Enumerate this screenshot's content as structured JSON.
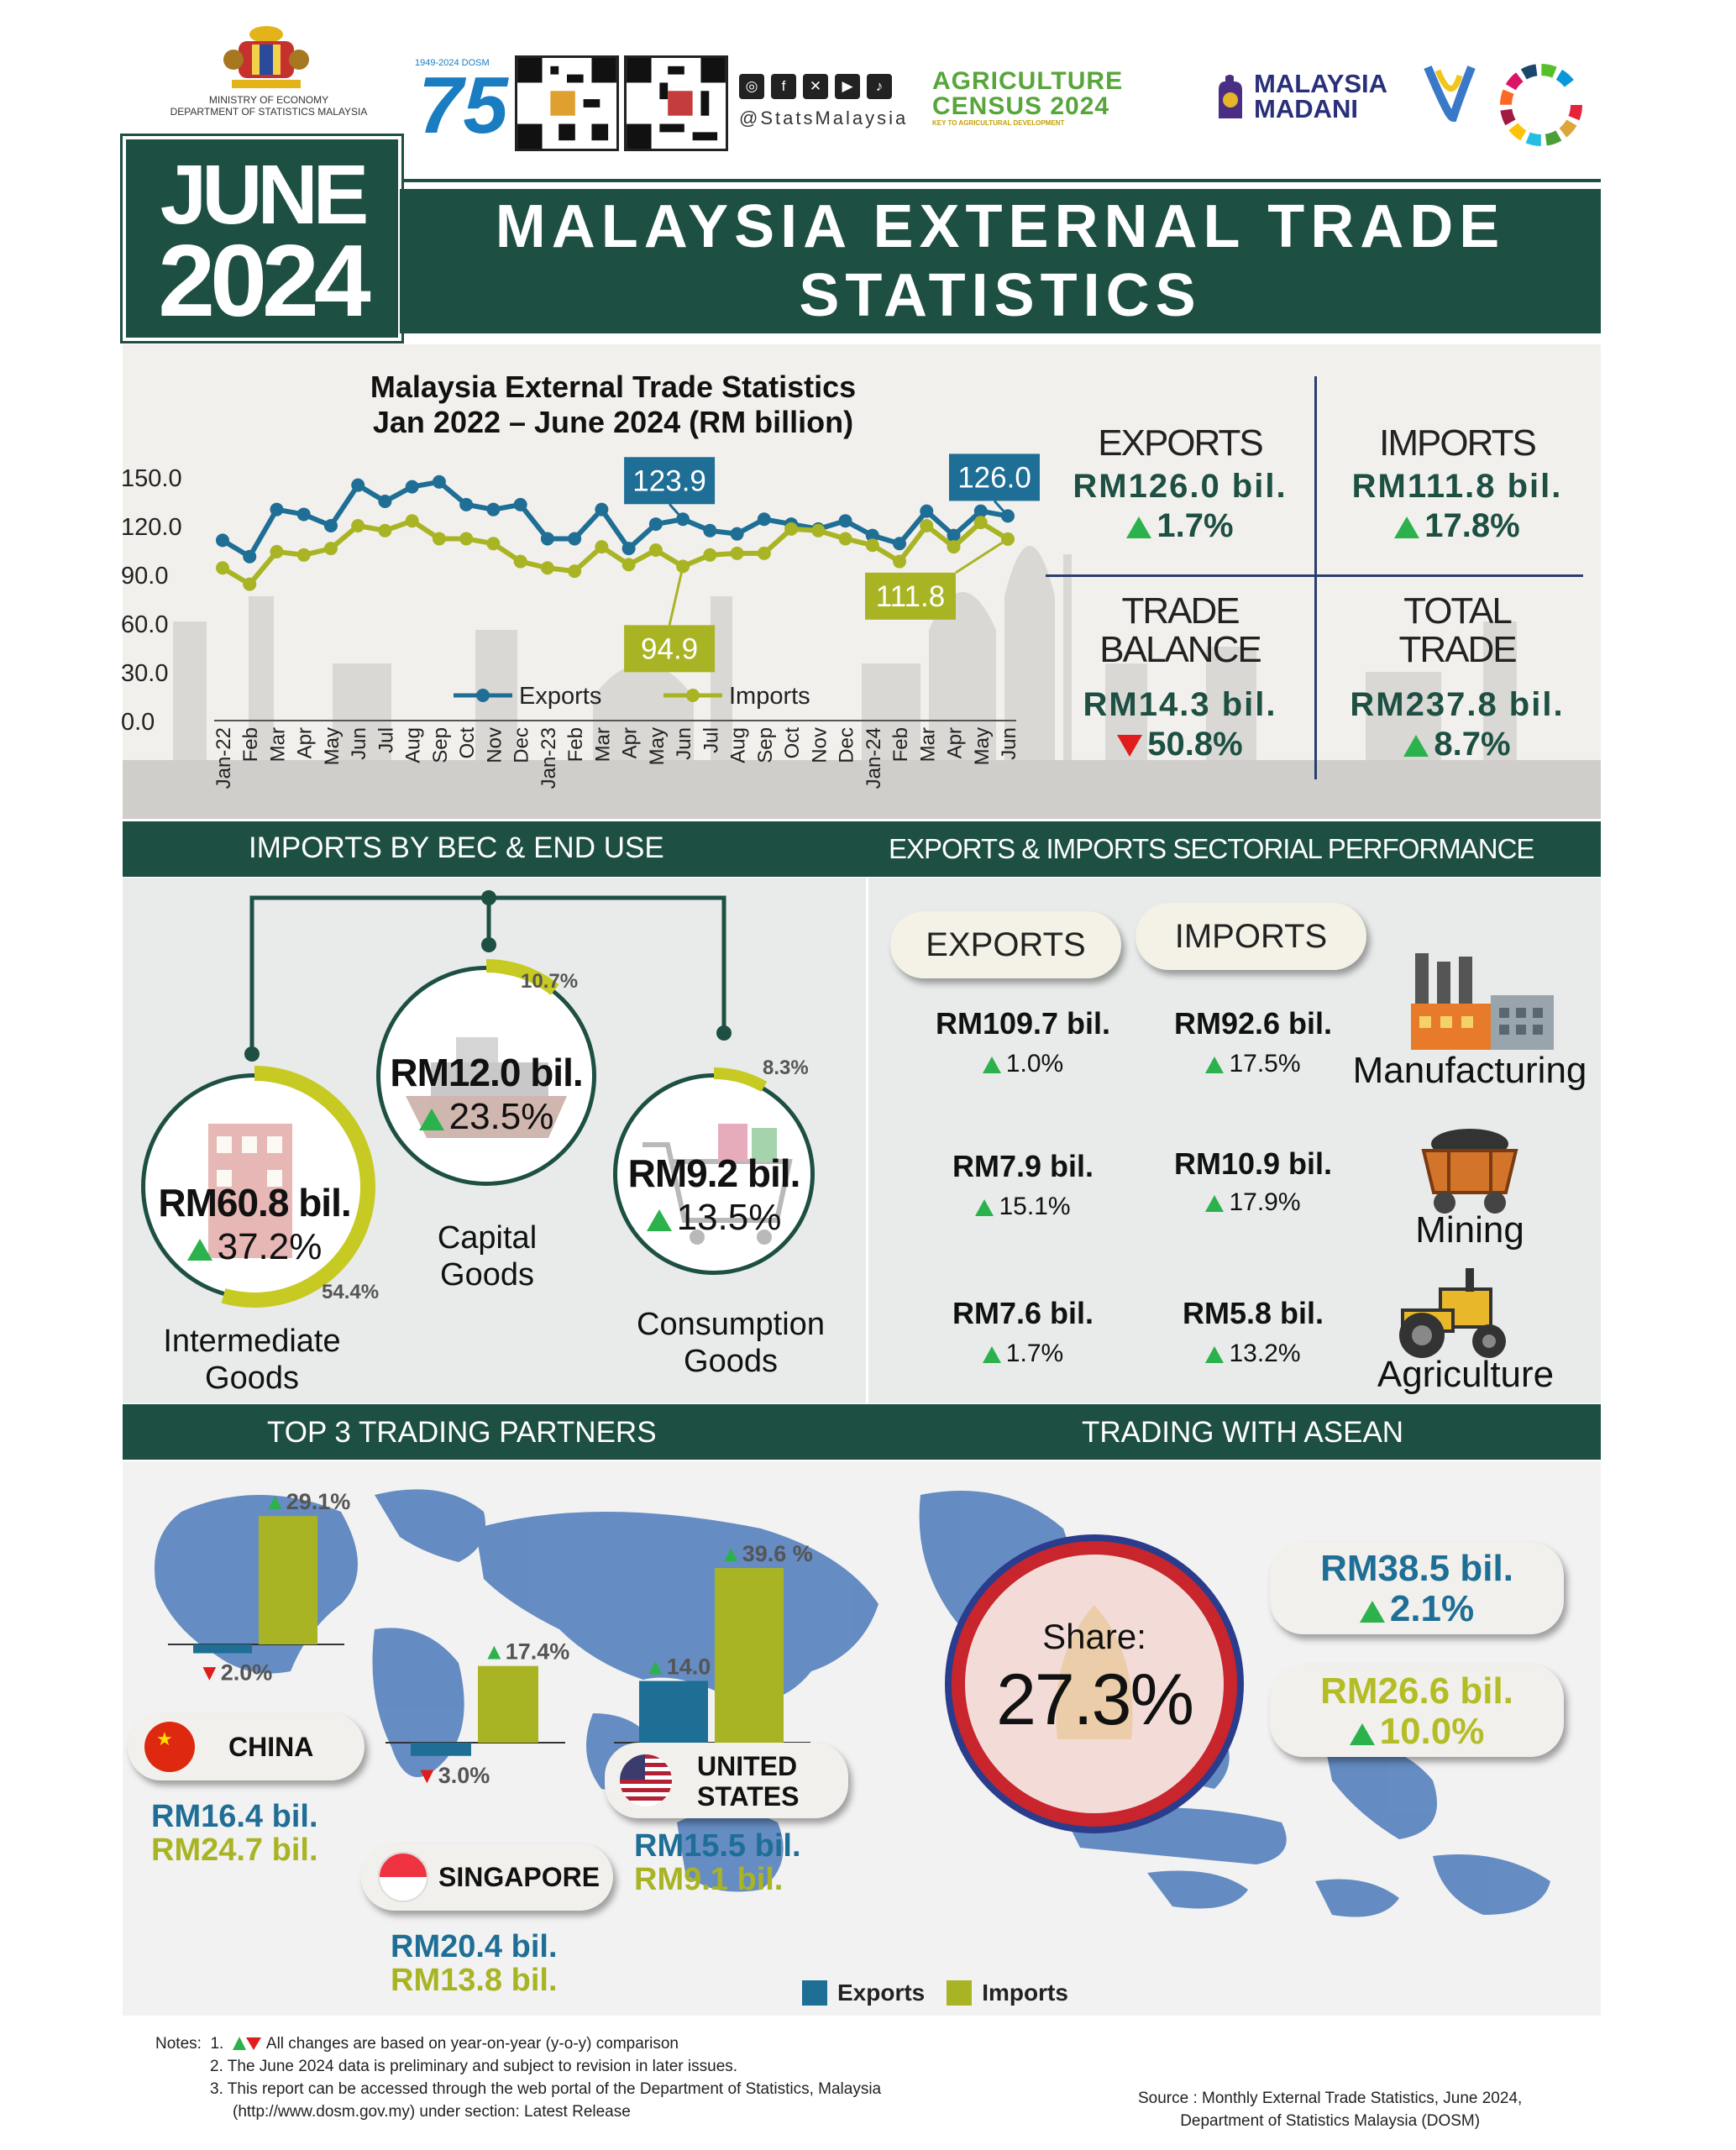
{
  "header": {
    "ministry_line1": "MINISTRY OF ECONOMY",
    "ministry_line2": "DEPARTMENT OF STATISTICS MALAYSIA",
    "dosm_badge_text": "75",
    "dosm_badge_top": "1949-2024 DOSM",
    "social_handle": "@StatsMalaysia",
    "social_icons": [
      "instagram-icon",
      "facebook-icon",
      "x-icon",
      "youtube-icon",
      "tiktok-icon"
    ],
    "agri_line1": "AGRICULTURE",
    "agri_line2": "CENSUS 2024",
    "agri_tagline": "KEY TO AGRICULTURAL DEVELOPMENT",
    "madani_line1": "MALAYSIA",
    "madani_line2": "MADANI"
  },
  "banner": {
    "month": "JUNE",
    "year": "2024",
    "title_line1": "MALAYSIA EXTERNAL TRADE",
    "title_line2": "STATISTICS"
  },
  "chart_data": {
    "type": "line",
    "title_line1": "Malaysia External Trade Statistics",
    "title_line2": "Jan 2022 – June 2024 (RM billion)",
    "x": [
      "Jan-22",
      "Feb",
      "Mar",
      "Apr",
      "May",
      "Jun",
      "Jul",
      "Aug",
      "Sep",
      "Oct",
      "Nov",
      "Dec",
      "Jan-23",
      "Feb",
      "Mar",
      "Apr",
      "May",
      "Jun",
      "Jul",
      "Aug",
      "Sep",
      "Oct",
      "Nov",
      "Dec",
      "Jan-24",
      "Feb",
      "Mar",
      "Apr",
      "May",
      "Jun"
    ],
    "yticks": [
      "150.0",
      "120.0",
      "90.0",
      "60.0",
      "30.0",
      "0.0"
    ],
    "ylim": [
      0,
      150
    ],
    "legend_position": "bottom-center",
    "series": [
      {
        "name": "Exports",
        "color": "#1e6e96",
        "values": [
          111,
          101,
          130,
          127,
          120,
          145,
          135,
          144,
          147,
          133,
          130,
          133,
          112,
          112,
          130,
          106,
          121,
          124,
          117,
          115,
          124,
          121,
          118,
          123,
          114,
          109,
          129,
          114,
          129,
          126
        ]
      },
      {
        "name": "Imports",
        "color": "#a9b424",
        "values": [
          94,
          84,
          104,
          102,
          106,
          120,
          117,
          123,
          112,
          112,
          109,
          98,
          94,
          92,
          107,
          96,
          105,
          95,
          102,
          103,
          103,
          118,
          117,
          112,
          108,
          98,
          120,
          107,
          122,
          111.8
        ]
      }
    ],
    "callouts": [
      {
        "series": 0,
        "index": 17,
        "label": "123.9"
      },
      {
        "series": 1,
        "index": 17,
        "label": "94.9"
      },
      {
        "series": 0,
        "index": 29,
        "label": "126.0"
      },
      {
        "series": 1,
        "index": 29,
        "label": "111.8"
      }
    ]
  },
  "kpis": {
    "exports": {
      "head": "EXPORTS",
      "value": "RM126.0 bil.",
      "change": "1.7%",
      "dir": "up"
    },
    "imports": {
      "head": "IMPORTS",
      "value": "RM111.8 bil.",
      "change": "17.8%",
      "dir": "up"
    },
    "balance": {
      "head1": "TRADE",
      "head2": "BALANCE",
      "value": "RM14.3 bil.",
      "change": "50.8%",
      "dir": "down"
    },
    "total": {
      "head1": "TOTAL",
      "head2": "TRADE",
      "value": "RM237.8 bil.",
      "change": "8.7%",
      "dir": "up"
    }
  },
  "bec": {
    "section_title": "IMPORTS BY BEC & END USE",
    "intermediate": {
      "value": "RM60.8 bil.",
      "change": "37.2%",
      "share": "54.4%",
      "share_value": 54.4,
      "label1": "Intermediate",
      "label2": "Goods"
    },
    "capital": {
      "value": "RM12.0 bil.",
      "change": "23.5%",
      "share": "10.7%",
      "share_value": 10.7,
      "label1": "Capital",
      "label2": "Goods"
    },
    "consumption": {
      "value": "RM9.2 bil.",
      "change": "13.5%",
      "share": "8.3%",
      "share_value": 8.3,
      "label1": "Consumption",
      "label2": "Goods"
    }
  },
  "sectoral": {
    "section_title": "EXPORTS & IMPORTS  SECTORIAL PERFORMANCE",
    "exports_label": "EXPORTS",
    "imports_label": "IMPORTS",
    "rows": [
      {
        "name": "Manufacturing",
        "icon": "factory-icon",
        "exp_value": "RM109.7 bil.",
        "exp_change": "1.0%",
        "imp_value": "RM92.6 bil.",
        "imp_change": "17.5%"
      },
      {
        "name": "Mining",
        "icon": "mine-cart-icon",
        "exp_value": "RM7.9 bil.",
        "exp_change": "15.1%",
        "imp_value": "RM10.9 bil.",
        "imp_change": "17.9%"
      },
      {
        "name": "Agriculture",
        "icon": "tractor-icon",
        "exp_value": "RM7.6 bil.",
        "exp_change": "1.7%",
        "imp_value": "RM5.8 bil.",
        "imp_change": "13.2%"
      }
    ]
  },
  "partners": {
    "section_title": "TOP 3 TRADING PARTNERS",
    "legend_exports": "Exports",
    "legend_imports": "Imports",
    "exports_color": "#1e6e96",
    "imports_color": "#a9b424",
    "china": {
      "name": "CHINA",
      "exp_value": "RM16.4 bil.",
      "imp_value": "RM24.7 bil.",
      "exp_change": "2.0%",
      "exp_change_value": -2.0,
      "imp_change": "29.1%",
      "imp_change_value": 29.1
    },
    "singapore": {
      "name": "SINGAPORE",
      "exp_value": "RM20.4 bil.",
      "imp_value": "RM13.8 bil.",
      "exp_change": "3.0%",
      "exp_change_value": -3.0,
      "imp_change": "17.4%",
      "imp_change_value": 17.4
    },
    "us": {
      "name1": "UNITED",
      "name2": "STATES",
      "exp_value": "RM15.5 bil.",
      "imp_value": "RM9.1 bil.",
      "exp_change": "14.0 %",
      "exp_change_value": 14.0,
      "imp_change": "39.6 %",
      "imp_change_value": 39.6
    }
  },
  "asean": {
    "section_title": "TRADING WITH ASEAN",
    "share_label": "Share:",
    "share_value": "27.3%",
    "exp_value": "RM38.5 bil.",
    "exp_change": "2.1%",
    "imp_value": "RM26.6 bil.",
    "imp_change": "10.0%"
  },
  "notes": {
    "label": "Notes:",
    "n1_num": "1.",
    "n1": "All changes are based on year-on-year (y-o-y) comparison",
    "n2": "2. The June 2024 data is preliminary and subject to revision in later issues.",
    "n3": "3. This report can be accessed through the web portal of the Department of Statistics, Malaysia",
    "n3b": "(http://www.dosm.gov.my)  under section: Latest Release"
  },
  "source": {
    "line1": "Source : Monthly External Trade Statistics, June 2024,",
    "line2": "Department of Statistics Malaysia (DOSM)"
  }
}
